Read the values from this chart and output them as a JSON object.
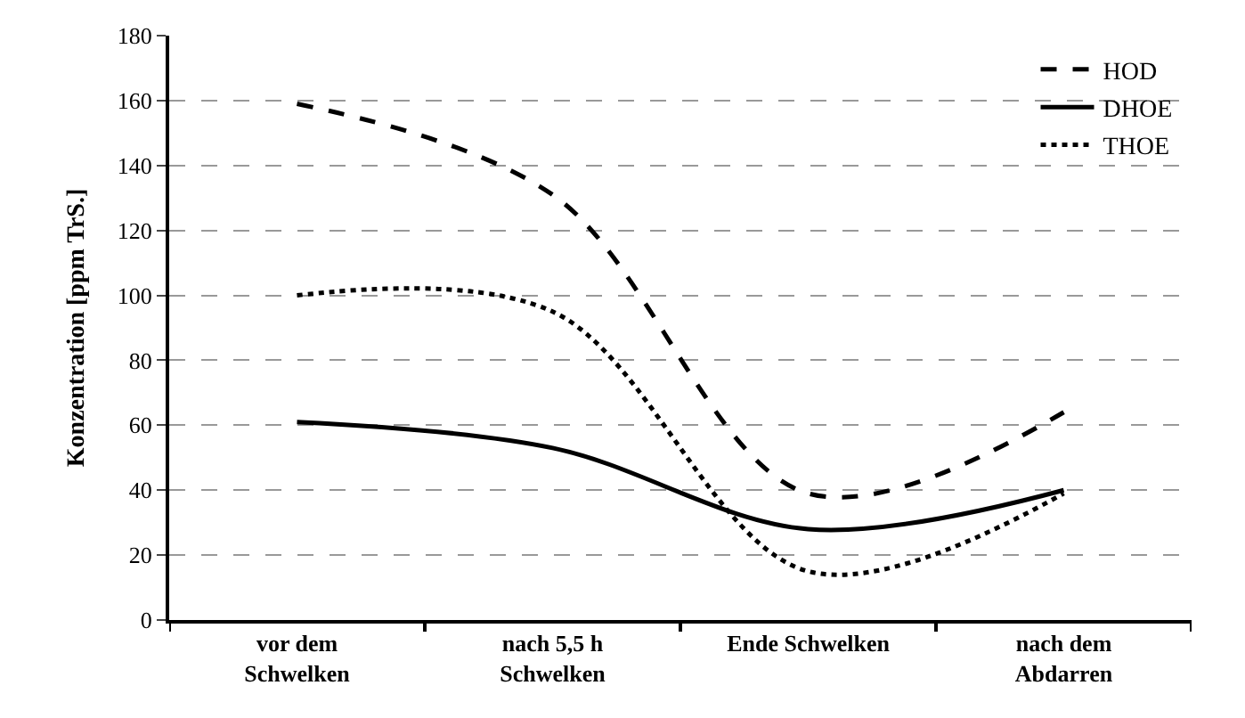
{
  "chart_data": {
    "type": "line",
    "ylabel": "Konzentration [ppm TrS.]",
    "categories": [
      "vor dem\nSchwelken",
      "nach 5,5 h\nSchwelken",
      "Ende Schwelken",
      "nach dem\nAbdarren"
    ],
    "series": [
      {
        "name": "HOD",
        "color": "#000000",
        "line_style": "dashed",
        "values": [
          159,
          131,
          39,
          64
        ]
      },
      {
        "name": "DHOE",
        "color": "#000000",
        "line_style": "solid",
        "values": [
          61,
          53,
          28,
          40
        ]
      },
      {
        "name": "THOE",
        "color": "#000000",
        "line_style": "dotted",
        "values": [
          100,
          95,
          15,
          39
        ]
      }
    ],
    "ylim": [
      0,
      180
    ],
    "yticks": [
      0,
      20,
      40,
      60,
      80,
      100,
      120,
      140,
      160,
      180
    ],
    "grid": "y",
    "legend": "top right",
    "marker": "none"
  }
}
